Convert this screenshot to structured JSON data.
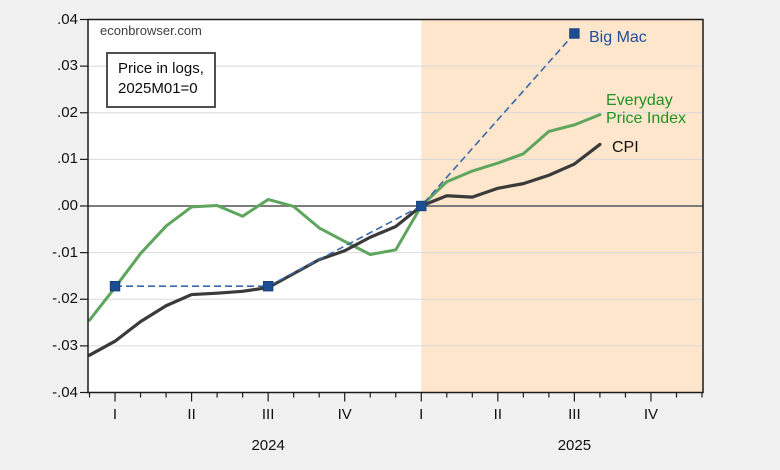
{
  "watermark": "econbrowser.com",
  "note_box": {
    "line1": "Price in logs,",
    "line2": "2025M01=0"
  },
  "series_labels": {
    "big_mac": "Big Mac",
    "epi_line1": "Everyday",
    "epi_line2": "Price Index",
    "cpi": "CPI"
  },
  "chart_data": {
    "type": "line",
    "title": "Price in logs, 2025M01=0",
    "source_label": "econbrowser.com",
    "months": [
      "2023M12",
      "2024M01",
      "2024M02",
      "2024M03",
      "2024M04",
      "2024M05",
      "2024M06",
      "2024M07",
      "2024M08",
      "2024M09",
      "2024M10",
      "2024M11",
      "2024M12",
      "2025M01",
      "2025M02",
      "2025M03",
      "2025M04",
      "2025M05",
      "2025M06",
      "2025M07",
      "2025M08"
    ],
    "ylim": [
      -0.04,
      0.04
    ],
    "ytick_step": 0.01,
    "ytick_labels": [
      ".04",
      ".03",
      ".02",
      ".01",
      ".00",
      "-.01",
      "-.02",
      "-.03",
      "-.04"
    ],
    "x_axis": {
      "tick_unit": "month",
      "total_tick_months": 25,
      "quarter_labels": [
        "I",
        "II",
        "III",
        "IV",
        "I",
        "II",
        "III",
        "IV"
      ],
      "quarter_month_indices": [
        1,
        4,
        7,
        10,
        13,
        16,
        19,
        22
      ],
      "year_labels": [
        {
          "text": "2024",
          "month_index": 7
        },
        {
          "text": "2025",
          "month_index": 19
        }
      ]
    },
    "shaded_region": {
      "start_month": "2025M01",
      "start_index": 13
    },
    "grid": true,
    "legend_position": "labels-right-of-lines",
    "series": [
      {
        "name": "Everyday Price Index",
        "color": "#5ea55e",
        "style": "solid",
        "values": [
          -0.0245,
          -0.0175,
          -0.0102,
          -0.0043,
          -0.0002,
          0.0001,
          -0.0022,
          0.0014,
          -0.0001,
          -0.0047,
          -0.0076,
          -0.0104,
          -0.0094,
          0.0,
          0.0052,
          0.0075,
          0.0092,
          0.0112,
          0.016,
          0.0174,
          0.0196
        ]
      },
      {
        "name": "CPI",
        "color": "#3a3a3a",
        "style": "solid",
        "values": [
          -0.032,
          -0.029,
          -0.0248,
          -0.0214,
          -0.019,
          -0.0187,
          -0.0183,
          -0.0175,
          -0.0145,
          -0.0115,
          -0.0096,
          -0.0067,
          -0.0044,
          0.0,
          0.0022,
          0.0019,
          0.0038,
          0.0048,
          0.0066,
          0.009,
          0.0132
        ]
      },
      {
        "name": "Big Mac",
        "color": "#3b67ab",
        "marker_color": "#1d4e93",
        "style": "dashed",
        "marker": "square",
        "month_indices": [
          1,
          7,
          13,
          19
        ],
        "values": [
          -0.0172,
          -0.0172,
          0.0,
          0.037
        ]
      }
    ],
    "colors": {
      "shade": "#fde6cb",
      "grid": "#d9d9d9",
      "zero_line": "#7c7c7c",
      "frame": "#1c1c1c",
      "plot_background": "#ffffff",
      "page_background": "#f1f1f1"
    }
  }
}
